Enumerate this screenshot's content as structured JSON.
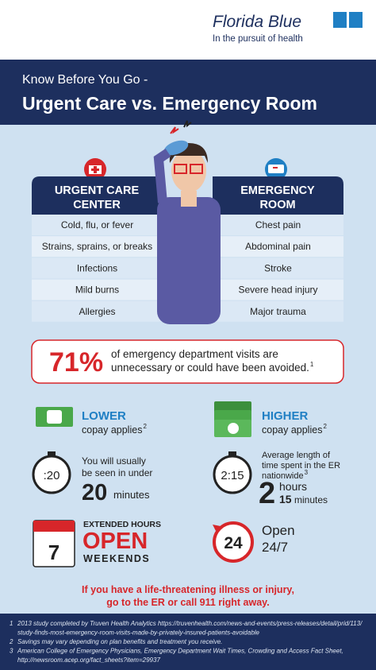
{
  "header": {
    "brand": "Florida Blue",
    "tagline": "In the pursuit of health",
    "kicker": "Know Before You Go -",
    "title": "Urgent Care vs. Emergency Room"
  },
  "urgent_care": {
    "title_lines": [
      "URGENT CARE",
      "CENTER"
    ],
    "items": [
      "Cold, flu, or fever",
      "Strains, sprains, or breaks",
      "Infections",
      "Mild burns",
      "Allergies"
    ]
  },
  "emergency_room": {
    "title_lines": [
      "EMERGENCY",
      "ROOM"
    ],
    "items": [
      "Chest pain",
      "Abdominal pain",
      "Stroke",
      "Severe head injury",
      "Major trauma"
    ]
  },
  "stat": {
    "value": "71%",
    "text_lines": [
      "of emergency department visits are",
      "unnecessary or could have been avoided."
    ],
    "footnote": "1"
  },
  "cost": {
    "urgent": {
      "label": "LOWER",
      "text": "copay applies",
      "footnote": "2"
    },
    "er": {
      "label": "HIGHER",
      "text": "copay applies",
      "footnote": "2"
    }
  },
  "wait": {
    "urgent": {
      "timer": ":20",
      "text_lines": [
        "You will usually",
        "be seen in under"
      ],
      "number": "20",
      "unit": "minutes"
    },
    "er": {
      "timer": "2:15",
      "text_lines": [
        "Average length of",
        "time spent in the ER",
        "nationwide"
      ],
      "footnote": "3",
      "hours": "2",
      "hours_unit": "hours",
      "minutes": "15",
      "minutes_unit": "minutes"
    }
  },
  "hours": {
    "urgent": {
      "day": "7",
      "line1": "EXTENDED HOURS",
      "line2": "OPEN",
      "line3": "WEEKENDS"
    },
    "er": {
      "badge": "24",
      "line1": "Open",
      "line2": "24/7"
    }
  },
  "warning": [
    "If you have a life-threatening illness or injury,",
    "go to the ER or call 911 right away."
  ],
  "footnotes": [
    {
      "number": "1",
      "lines": [
        "2013 study completed by Truven Health Analytics https://truvenhealth.com/news-and-events/press-releases/detail/prid/113/",
        "study-finds-most-emergency-room-visits-made-by-privately-insured-patients-avoidable"
      ]
    },
    {
      "number": "2",
      "lines": [
        "Savings may vary depending on plan benefits and treatment you receive."
      ]
    },
    {
      "number": "3",
      "lines": [
        "American College of Emergency Physicians, Emergency Department Wait Times, Crowding and Access Fact Sheet,",
        "http://newsroom.acep.org/fact_sheets?item=29937"
      ]
    }
  ]
}
